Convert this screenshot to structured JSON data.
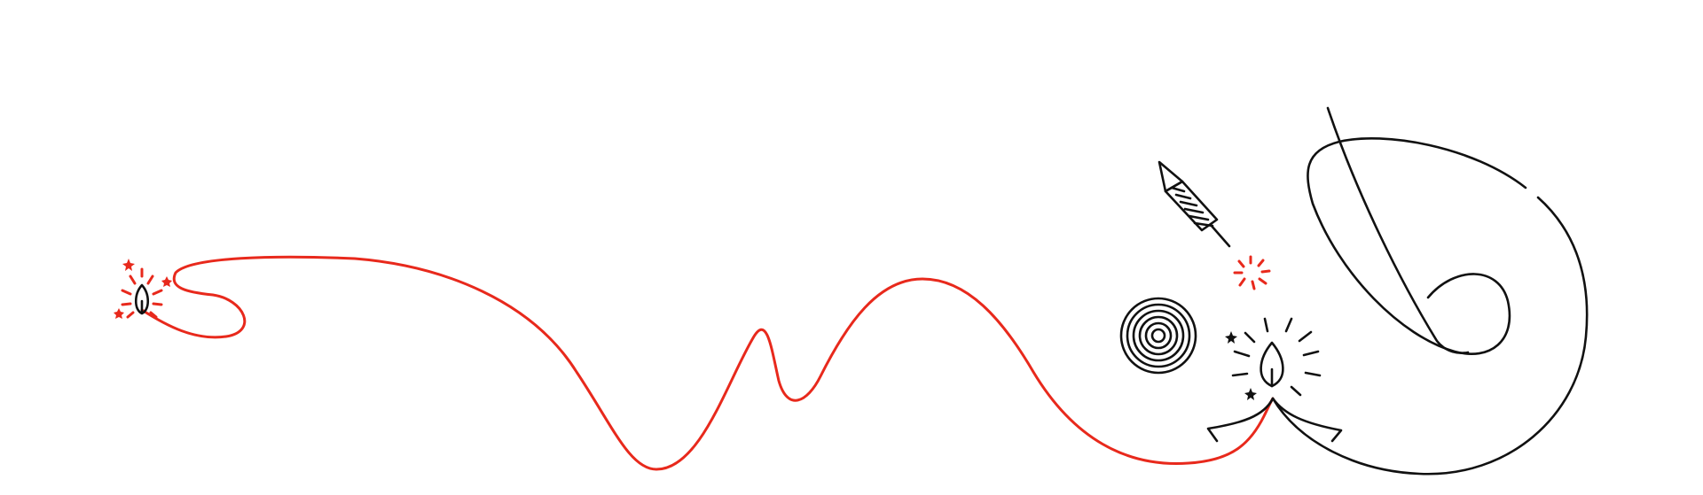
{
  "illustration": {
    "colors": {
      "background": "#ffffff",
      "fuse_red": "#e8291c",
      "ink": "#111111"
    },
    "icons": [
      "small-diya-icon",
      "rocket-firecracker-icon",
      "spark-burst-icon",
      "spiral-chakri-icon",
      "large-diya-icon"
    ]
  }
}
